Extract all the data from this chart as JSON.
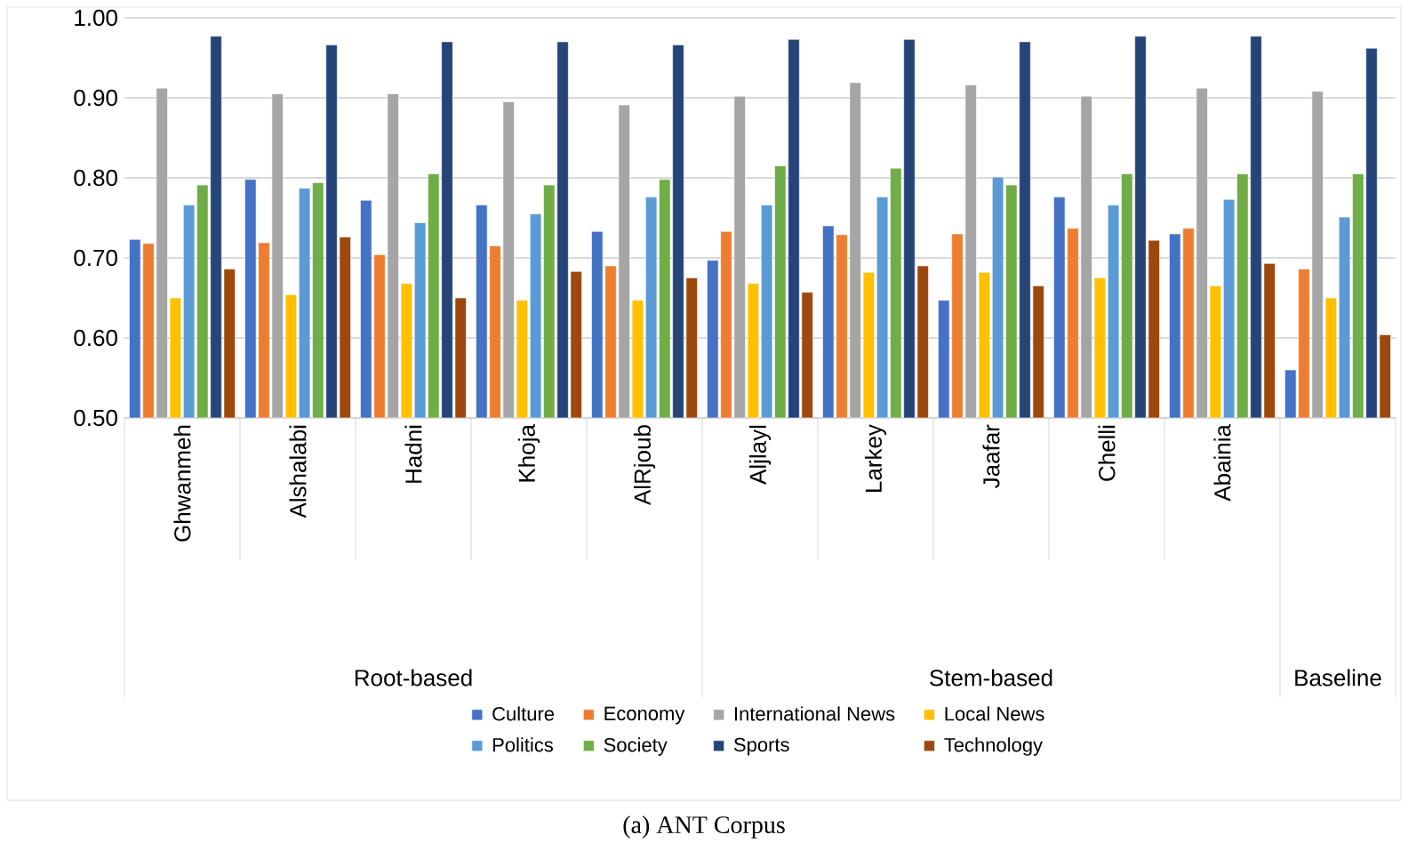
{
  "chart_data": {
    "type": "bar",
    "categories": [
      "Ghwanmeh",
      "Alshalabi",
      "Hadni",
      "Khoja",
      "AlRjoub",
      "Aljlayl",
      "Larkey",
      "Jaafar",
      "Chelli",
      "Abainia",
      null
    ],
    "series": [
      {
        "name": "Culture",
        "color": "#4472c4",
        "values": [
          0.723,
          0.798,
          0.772,
          0.766,
          0.733,
          0.697,
          0.74,
          0.647,
          0.776,
          0.73,
          0.56
        ]
      },
      {
        "name": "Economy",
        "color": "#ed7d31",
        "values": [
          0.718,
          0.719,
          0.704,
          0.715,
          0.69,
          0.733,
          0.729,
          0.73,
          0.737,
          0.737,
          0.686
        ]
      },
      {
        "name": "International News",
        "color": "#a5a5a5",
        "values": [
          0.912,
          0.905,
          0.905,
          0.895,
          0.891,
          0.902,
          0.919,
          0.916,
          0.902,
          0.912,
          0.908
        ]
      },
      {
        "name": "Local News",
        "color": "#ffc000",
        "values": [
          0.65,
          0.654,
          0.668,
          0.647,
          0.647,
          0.668,
          0.682,
          0.682,
          0.675,
          0.665,
          0.65
        ]
      },
      {
        "name": "Politics",
        "color": "#5b9bd5",
        "values": [
          0.766,
          0.787,
          0.744,
          0.755,
          0.776,
          0.766,
          0.776,
          0.801,
          0.766,
          0.773,
          0.751
        ]
      },
      {
        "name": "Society",
        "color": "#70ad47",
        "values": [
          0.791,
          0.794,
          0.805,
          0.791,
          0.798,
          0.815,
          0.812,
          0.791,
          0.805,
          0.805,
          0.805
        ]
      },
      {
        "name": "Sports",
        "color": "#264478",
        "values": [
          0.977,
          0.966,
          0.97,
          0.97,
          0.966,
          0.973,
          0.973,
          0.97,
          0.977,
          0.977,
          0.962
        ]
      },
      {
        "name": "Technology",
        "color": "#9e480e",
        "values": [
          0.686,
          0.726,
          0.65,
          0.683,
          0.675,
          0.657,
          0.69,
          0.665,
          0.722,
          0.693,
          0.604
        ]
      }
    ],
    "ylim": [
      0.5,
      1.0
    ],
    "yticks": [
      {
        "value": 0.5,
        "label": "0.50"
      },
      {
        "value": 0.6,
        "label": "0.60"
      },
      {
        "value": 0.7,
        "label": "0.70"
      },
      {
        "value": 0.8,
        "label": "0.80"
      },
      {
        "value": 0.9,
        "label": "0.90"
      },
      {
        "value": 1.0,
        "label": "1.00"
      }
    ],
    "grid": "y",
    "legend": "bottom",
    "annotations": [
      "Root-based",
      "Stem-based",
      "Baseline",
      "(a) ANT Corpus"
    ]
  }
}
